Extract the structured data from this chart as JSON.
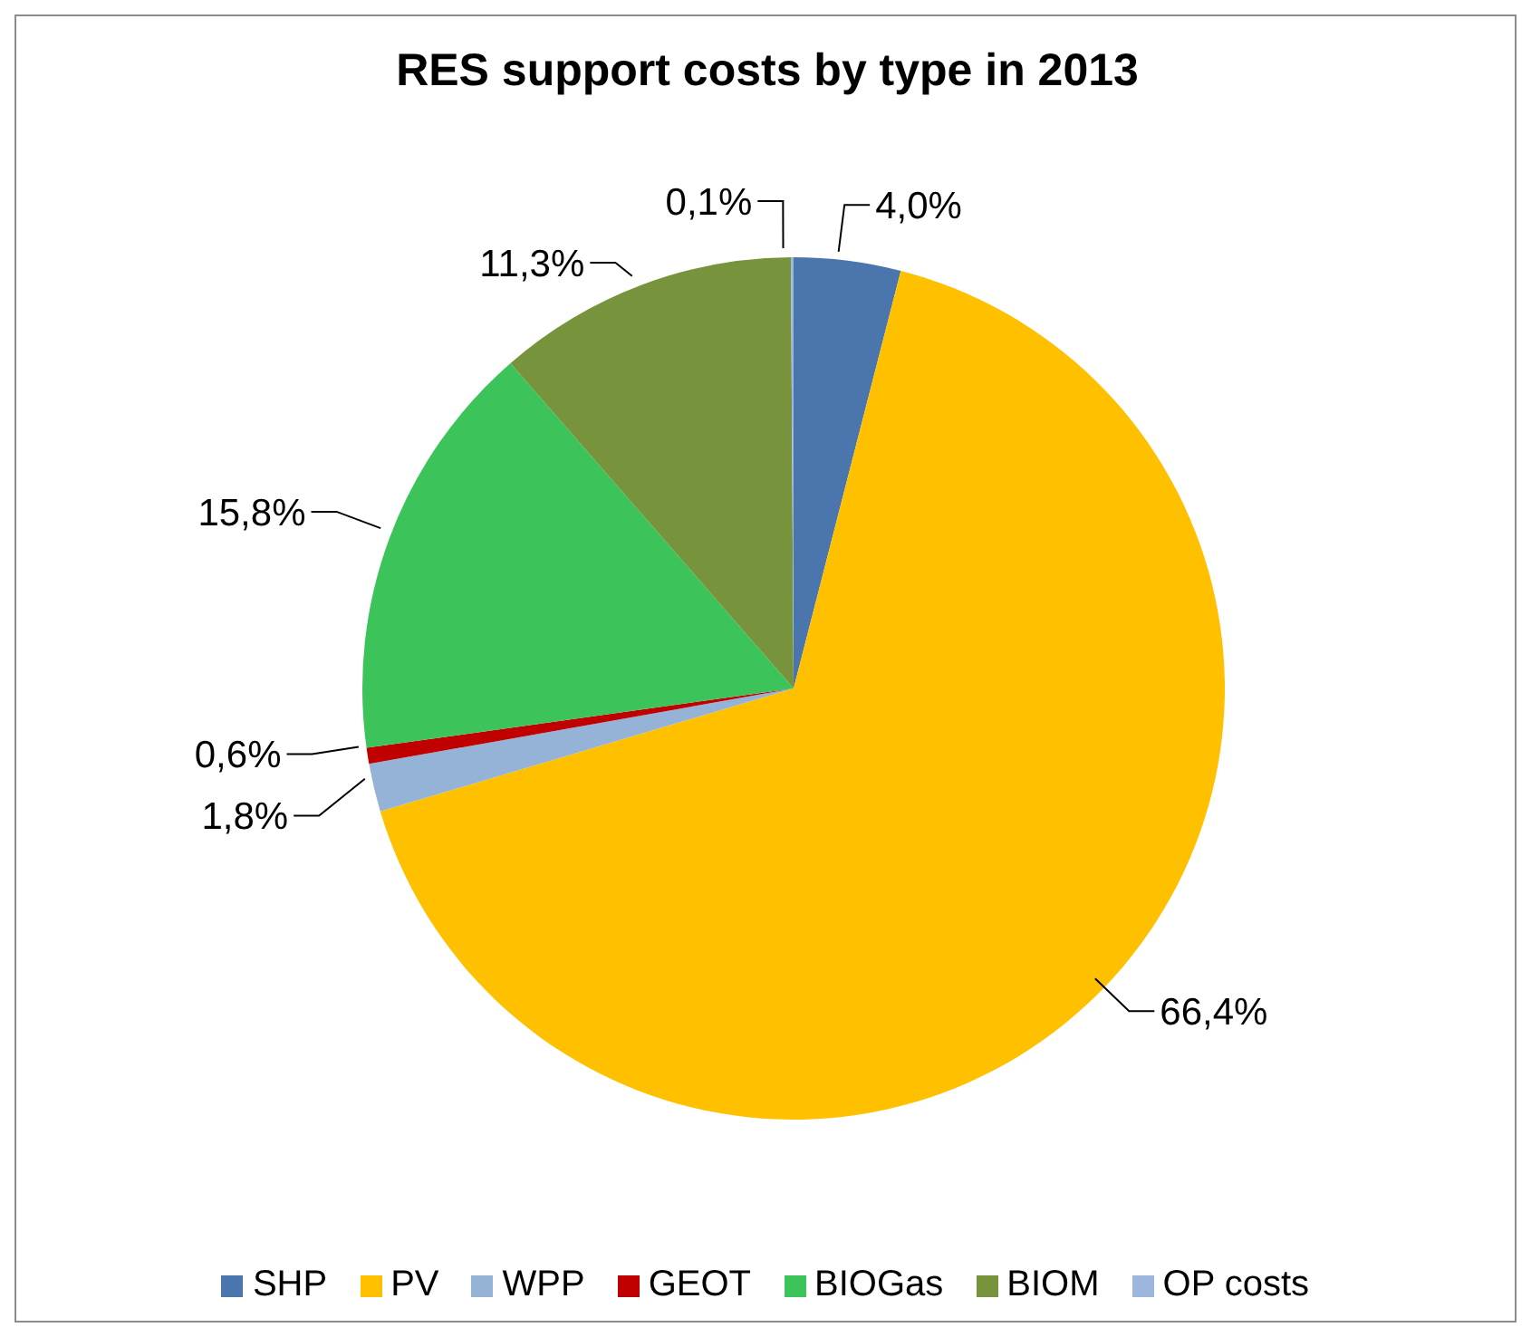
{
  "chart_data": {
    "type": "pie",
    "title": "RES support costs by type in 2013",
    "categories": [
      "SHP",
      "PV",
      "WPP",
      "GEOT",
      "BIOGas",
      "BIOM",
      "OP costs"
    ],
    "values": [
      4.0,
      66.4,
      1.8,
      0.6,
      15.8,
      11.3,
      0.1
    ],
    "colors": [
      "#4a76ad",
      "#ffc000",
      "#95b3d7",
      "#c00000",
      "#3cc35a",
      "#77933c",
      "#9db6dd"
    ],
    "value_labels": [
      "4,0%",
      "66,4%",
      "1,8%",
      "0,6%",
      "15,8%",
      "11,3%",
      "0,1%"
    ],
    "legend": "bottom"
  }
}
